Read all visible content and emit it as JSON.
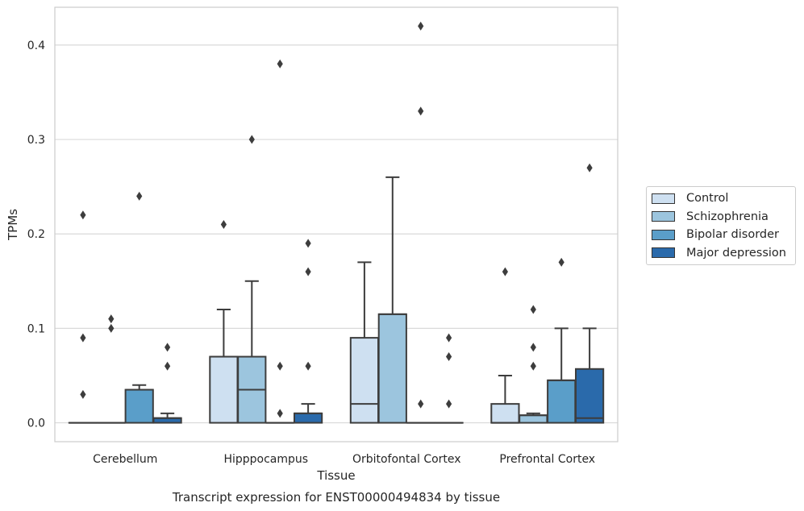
{
  "chart_data": {
    "type": "box",
    "title": "Transcript expression for ENST00000494834 by tissue",
    "xlabel": "Tissue",
    "ylabel": "TPMs",
    "ylim": [
      -0.02,
      0.44
    ],
    "yticks": [
      "0.0",
      "0.1",
      "0.2",
      "0.3",
      "0.4"
    ],
    "grid": true,
    "legend_position": "right",
    "categories": [
      "Cerebellum",
      "Hipppocampus",
      "Orbitofontal Cortex",
      "Prefrontal Cortex"
    ],
    "series": [
      {
        "name": "Control",
        "color": "#cee0f1",
        "boxes": [
          {
            "min": 0,
            "q1": 0,
            "median": 0,
            "q3": 0,
            "max": 0,
            "outliers": [
              0.22,
              0.09,
              0.03
            ]
          },
          {
            "min": 0,
            "q1": 0,
            "median": 0.07,
            "q3": 0.07,
            "max": 0.12,
            "outliers": [
              0.21
            ]
          },
          {
            "min": 0,
            "q1": 0,
            "median": 0.02,
            "q3": 0.09,
            "max": 0.17,
            "outliers": []
          },
          {
            "min": 0,
            "q1": 0,
            "median": 0,
            "q3": 0.02,
            "max": 0.05,
            "outliers": [
              0.16
            ]
          }
        ]
      },
      {
        "name": "Schizophrenia",
        "color": "#9cc5de",
        "boxes": [
          {
            "min": 0,
            "q1": 0,
            "median": 0,
            "q3": 0,
            "max": 0,
            "outliers": [
              0.11,
              0.1
            ]
          },
          {
            "min": 0,
            "q1": 0,
            "median": 0.035,
            "q3": 0.07,
            "max": 0.15,
            "outliers": [
              0.3
            ]
          },
          {
            "min": 0,
            "q1": 0,
            "median": 0.115,
            "q3": 0.115,
            "max": 0.26,
            "outliers": []
          },
          {
            "min": 0,
            "q1": 0,
            "median": 0.008,
            "q3": 0.008,
            "max": 0.01,
            "outliers": [
              0.12,
              0.08,
              0.06
            ]
          }
        ]
      },
      {
        "name": "Bipolar disorder",
        "color": "#5a9ec9",
        "boxes": [
          {
            "min": 0,
            "q1": 0,
            "median": 0.035,
            "q3": 0.035,
            "max": 0.04,
            "outliers": [
              0.24
            ]
          },
          {
            "min": 0,
            "q1": 0,
            "median": 0,
            "q3": 0,
            "max": 0,
            "outliers": [
              0.38,
              0.06,
              0.01
            ]
          },
          {
            "min": 0,
            "q1": 0,
            "median": 0,
            "q3": 0,
            "max": 0,
            "outliers": [
              0.42,
              0.33,
              0.02
            ]
          },
          {
            "min": 0,
            "q1": 0,
            "median": 0.045,
            "q3": 0.045,
            "max": 0.1,
            "outliers": [
              0.17
            ]
          }
        ]
      },
      {
        "name": "Major depression",
        "color": "#2a6aab",
        "boxes": [
          {
            "min": 0,
            "q1": 0,
            "median": 0.005,
            "q3": 0.005,
            "max": 0.01,
            "outliers": [
              0.08,
              0.06
            ]
          },
          {
            "min": 0,
            "q1": 0,
            "median": 0.01,
            "q3": 0.01,
            "max": 0.02,
            "outliers": [
              0.19,
              0.16,
              0.06
            ]
          },
          {
            "min": 0,
            "q1": 0,
            "median": 0,
            "q3": 0,
            "max": 0,
            "outliers": [
              0.09,
              0.07,
              0.02
            ]
          },
          {
            "min": 0,
            "q1": 0,
            "median": 0.005,
            "q3": 0.057,
            "max": 0.1,
            "outliers": [
              0.27
            ]
          }
        ]
      }
    ]
  }
}
